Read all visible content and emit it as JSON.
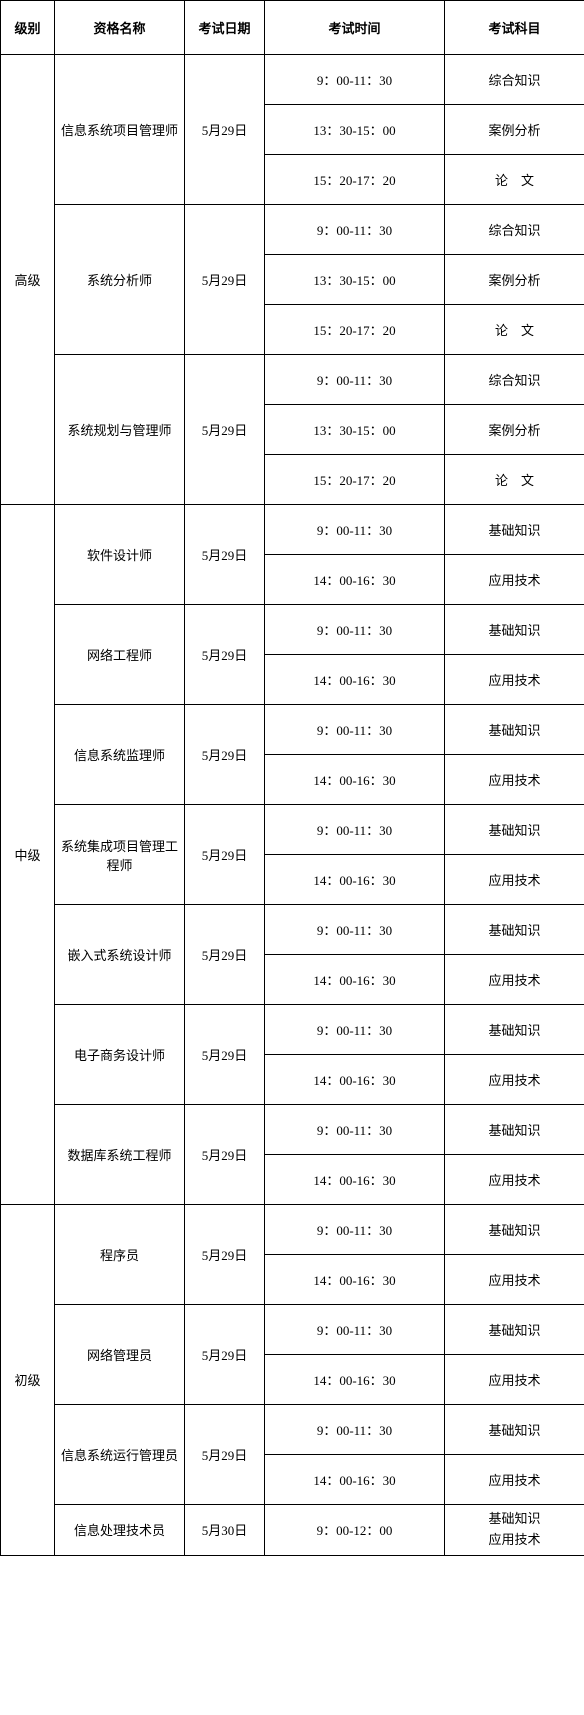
{
  "headers": {
    "level": "级别",
    "name": "资格名称",
    "date": "考试日期",
    "time": "考试时间",
    "subject": "考试科目"
  },
  "levels": [
    {
      "label": "高级",
      "quals": [
        {
          "name": "信息系统项目管理师",
          "date": "5月29日",
          "sessions": [
            {
              "time": "9：00-11：30",
              "subject": "综合知识"
            },
            {
              "time": "13：30-15：00",
              "subject": "案例分析"
            },
            {
              "time": "15：20-17：20",
              "subject": "论　文"
            }
          ]
        },
        {
          "name": "系统分析师",
          "date": "5月29日",
          "sessions": [
            {
              "time": "9：00-11：30",
              "subject": "综合知识"
            },
            {
              "time": "13：30-15：00",
              "subject": "案例分析"
            },
            {
              "time": "15：20-17：20",
              "subject": "论　文"
            }
          ]
        },
        {
          "name": "系统规划与管理师",
          "date": "5月29日",
          "sessions": [
            {
              "time": "9：00-11：30",
              "subject": "综合知识"
            },
            {
              "time": "13：30-15：00",
              "subject": "案例分析"
            },
            {
              "time": "15：20-17：20",
              "subject": "论　文"
            }
          ]
        }
      ]
    },
    {
      "label": "中级",
      "quals": [
        {
          "name": "软件设计师",
          "date": "5月29日",
          "sessions": [
            {
              "time": "9：00-11：30",
              "subject": "基础知识"
            },
            {
              "time": "14：00-16：30",
              "subject": "应用技术"
            }
          ]
        },
        {
          "name": "网络工程师",
          "date": "5月29日",
          "sessions": [
            {
              "time": "9：00-11：30",
              "subject": "基础知识"
            },
            {
              "time": "14：00-16：30",
              "subject": "应用技术"
            }
          ]
        },
        {
          "name": "信息系统监理师",
          "date": "5月29日",
          "sessions": [
            {
              "time": "9：00-11：30",
              "subject": "基础知识"
            },
            {
              "time": "14：00-16：30",
              "subject": "应用技术"
            }
          ]
        },
        {
          "name": "系统集成项目管理工程师",
          "date": "5月29日",
          "sessions": [
            {
              "time": "9：00-11：30",
              "subject": "基础知识"
            },
            {
              "time": "14：00-16：30",
              "subject": "应用技术"
            }
          ]
        },
        {
          "name": "嵌入式系统设计师",
          "date": "5月29日",
          "sessions": [
            {
              "time": "9：00-11：30",
              "subject": "基础知识"
            },
            {
              "time": "14：00-16：30",
              "subject": "应用技术"
            }
          ]
        },
        {
          "name": "电子商务设计师",
          "date": "5月29日",
          "sessions": [
            {
              "time": "9：00-11：30",
              "subject": "基础知识"
            },
            {
              "time": "14：00-16：30",
              "subject": "应用技术"
            }
          ]
        },
        {
          "name": "数据库系统工程师",
          "date": "5月29日",
          "sessions": [
            {
              "time": "9：00-11：30",
              "subject": "基础知识"
            },
            {
              "time": "14：00-16：30",
              "subject": "应用技术"
            }
          ]
        }
      ]
    },
    {
      "label": "初级",
      "quals": [
        {
          "name": "程序员",
          "date": "5月29日",
          "sessions": [
            {
              "time": "9：00-11：30",
              "subject": "基础知识"
            },
            {
              "time": "14：00-16：30",
              "subject": "应用技术"
            }
          ]
        },
        {
          "name": "网络管理员",
          "date": "5月29日",
          "sessions": [
            {
              "time": "9：00-11：30",
              "subject": "基础知识"
            },
            {
              "time": "14：00-16：30",
              "subject": "应用技术"
            }
          ]
        },
        {
          "name": "信息系统运行管理员",
          "date": "5月29日",
          "sessions": [
            {
              "time": "9：00-11：30",
              "subject": "基础知识"
            },
            {
              "time": "14：00-16：30",
              "subject": "应用技术"
            }
          ]
        },
        {
          "name": "信息处理技术员",
          "date": "5月30日",
          "sessions": [
            {
              "time": "9：00-12：00",
              "subject": "基础知识\n应用技术"
            }
          ]
        }
      ]
    }
  ]
}
